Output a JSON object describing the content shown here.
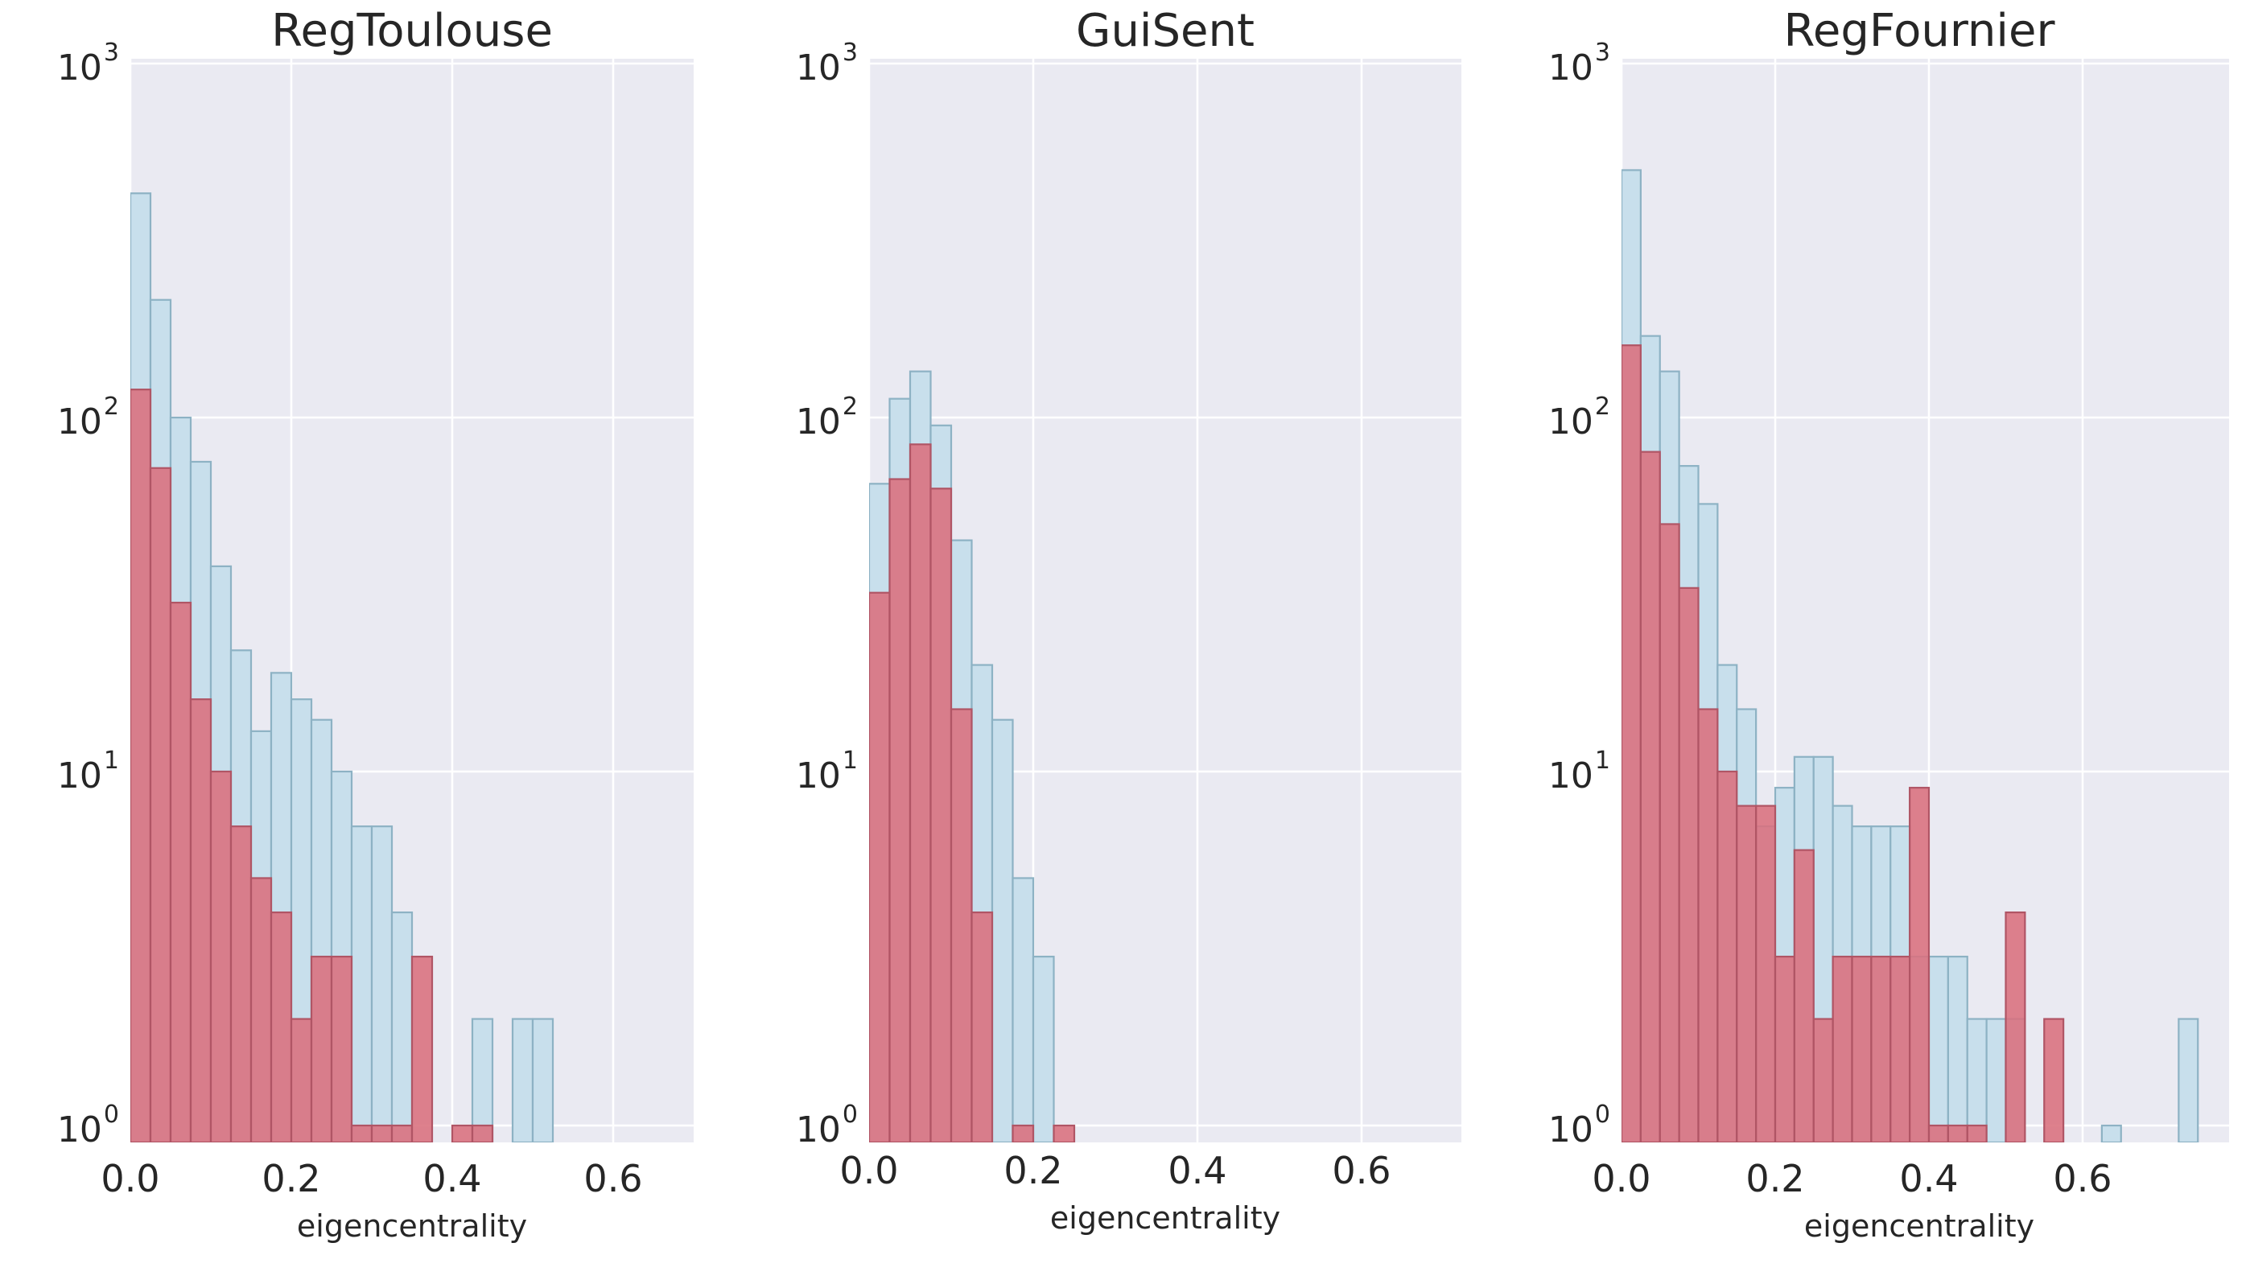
{
  "figure": {
    "background": "#ffffff",
    "plot_background": "#eaeaf2",
    "grid_color": "#ffffff",
    "text_color": "#262626"
  },
  "panels": [
    {
      "title": "RegToulouse",
      "xlabel": "eigencentrality"
    },
    {
      "title": "GuiSent",
      "xlabel": "eigencentrality"
    },
    {
      "title": "RegFournier",
      "xlabel": "eigencentrality"
    }
  ],
  "chart_data": [
    {
      "type": "bar",
      "subtype": "overlaid-histogram",
      "title": "RegToulouse",
      "xlabel": "eigencentrality",
      "ylabel": "",
      "y_scale": "log",
      "grid": true,
      "legend": false,
      "xlim": [
        0,
        0.7
      ],
      "ylim": [
        0.85,
        1100
      ],
      "x_ticks": [
        {
          "label": "0.0",
          "value": 0.0
        },
        {
          "label": "0.2",
          "value": 0.2
        },
        {
          "label": "0.4",
          "value": 0.4
        },
        {
          "label": "0.6",
          "value": 0.6
        }
      ],
      "y_ticks": [
        {
          "base": "10",
          "exp": "0",
          "value": 1
        },
        {
          "base": "10",
          "exp": "1",
          "value": 10
        },
        {
          "base": "10",
          "exp": "2",
          "value": 100
        },
        {
          "base": "10",
          "exp": "3",
          "value": 1000
        }
      ],
      "bin_start": 0.0,
      "bin_width": 0.025,
      "series": [
        {
          "name": "blue-distribution",
          "fill": "#c8dfec",
          "edge": "#8db2c4",
          "opacity": 1.0,
          "values": [
            430,
            215,
            100,
            75,
            38,
            22,
            13,
            19,
            16,
            14,
            10,
            7,
            7,
            4,
            0,
            0,
            0,
            2,
            0,
            2,
            2,
            0
          ]
        },
        {
          "name": "red-distribution",
          "fill": "#d96f7d",
          "edge": "#b05565",
          "opacity": 0.88,
          "values": [
            120,
            72,
            30,
            16,
            10,
            7,
            5,
            4,
            2,
            3,
            3,
            1,
            1,
            1,
            3,
            0,
            1,
            1,
            0,
            0,
            0,
            0
          ]
        }
      ]
    },
    {
      "type": "bar",
      "subtype": "overlaid-histogram",
      "title": "GuiSent",
      "xlabel": "eigencentrality",
      "ylabel": "",
      "y_scale": "log",
      "grid": true,
      "legend": false,
      "xlim": [
        0,
        0.72
      ],
      "ylim": [
        0.85,
        1100
      ],
      "x_ticks": [
        {
          "label": "0.0",
          "value": 0.0
        },
        {
          "label": "0.2",
          "value": 0.2
        },
        {
          "label": "0.4",
          "value": 0.4
        },
        {
          "label": "0.6",
          "value": 0.6
        }
      ],
      "y_ticks": [
        {
          "base": "10",
          "exp": "0",
          "value": 1
        },
        {
          "base": "10",
          "exp": "1",
          "value": 10
        },
        {
          "base": "10",
          "exp": "2",
          "value": 100
        },
        {
          "base": "10",
          "exp": "3",
          "value": 1000
        }
      ],
      "bin_start": 0.0,
      "bin_width": 0.025,
      "series": [
        {
          "name": "blue-distribution",
          "fill": "#c8dfec",
          "edge": "#8db2c4",
          "opacity": 1.0,
          "values": [
            65,
            113,
            135,
            95,
            45,
            20,
            14,
            5,
            3,
            0
          ]
        },
        {
          "name": "red-distribution",
          "fill": "#d96f7d",
          "edge": "#b05565",
          "opacity": 0.88,
          "values": [
            32,
            67,
            84,
            63,
            15,
            4,
            0,
            1,
            0,
            1
          ]
        }
      ]
    },
    {
      "type": "bar",
      "subtype": "overlaid-histogram",
      "title": "RegFournier",
      "xlabel": "eigencentrality",
      "ylabel": "",
      "y_scale": "log",
      "grid": true,
      "legend": false,
      "xlim": [
        0,
        0.79
      ],
      "ylim": [
        0.85,
        1100
      ],
      "x_ticks": [
        {
          "label": "0.0",
          "value": 0.0
        },
        {
          "label": "0.2",
          "value": 0.2
        },
        {
          "label": "0.4",
          "value": 0.4
        },
        {
          "label": "0.6",
          "value": 0.6
        }
      ],
      "y_ticks": [
        {
          "base": "10",
          "exp": "0",
          "value": 1
        },
        {
          "base": "10",
          "exp": "1",
          "value": 10
        },
        {
          "base": "10",
          "exp": "2",
          "value": 100
        },
        {
          "base": "10",
          "exp": "3",
          "value": 1000
        }
      ],
      "bin_start": 0.0,
      "bin_width": 0.025,
      "series": [
        {
          "name": "blue-distribution",
          "fill": "#c8dfec",
          "edge": "#8db2c4",
          "opacity": 1.0,
          "values": [
            500,
            170,
            135,
            73,
            57,
            20,
            15,
            7,
            9,
            11,
            11,
            8,
            7,
            7,
            7,
            3,
            3,
            3,
            2,
            2,
            2,
            0,
            0,
            0,
            0,
            1,
            0,
            0,
            0,
            2
          ]
        },
        {
          "name": "red-distribution",
          "fill": "#d96f7d",
          "edge": "#b05565",
          "opacity": 0.88,
          "values": [
            160,
            80,
            50,
            33,
            15,
            10,
            8,
            8,
            3,
            6,
            2,
            3,
            3,
            3,
            3,
            9,
            1,
            1,
            1,
            0,
            4,
            0,
            2,
            0,
            0,
            0,
            0,
            0,
            0,
            0
          ]
        }
      ]
    }
  ]
}
